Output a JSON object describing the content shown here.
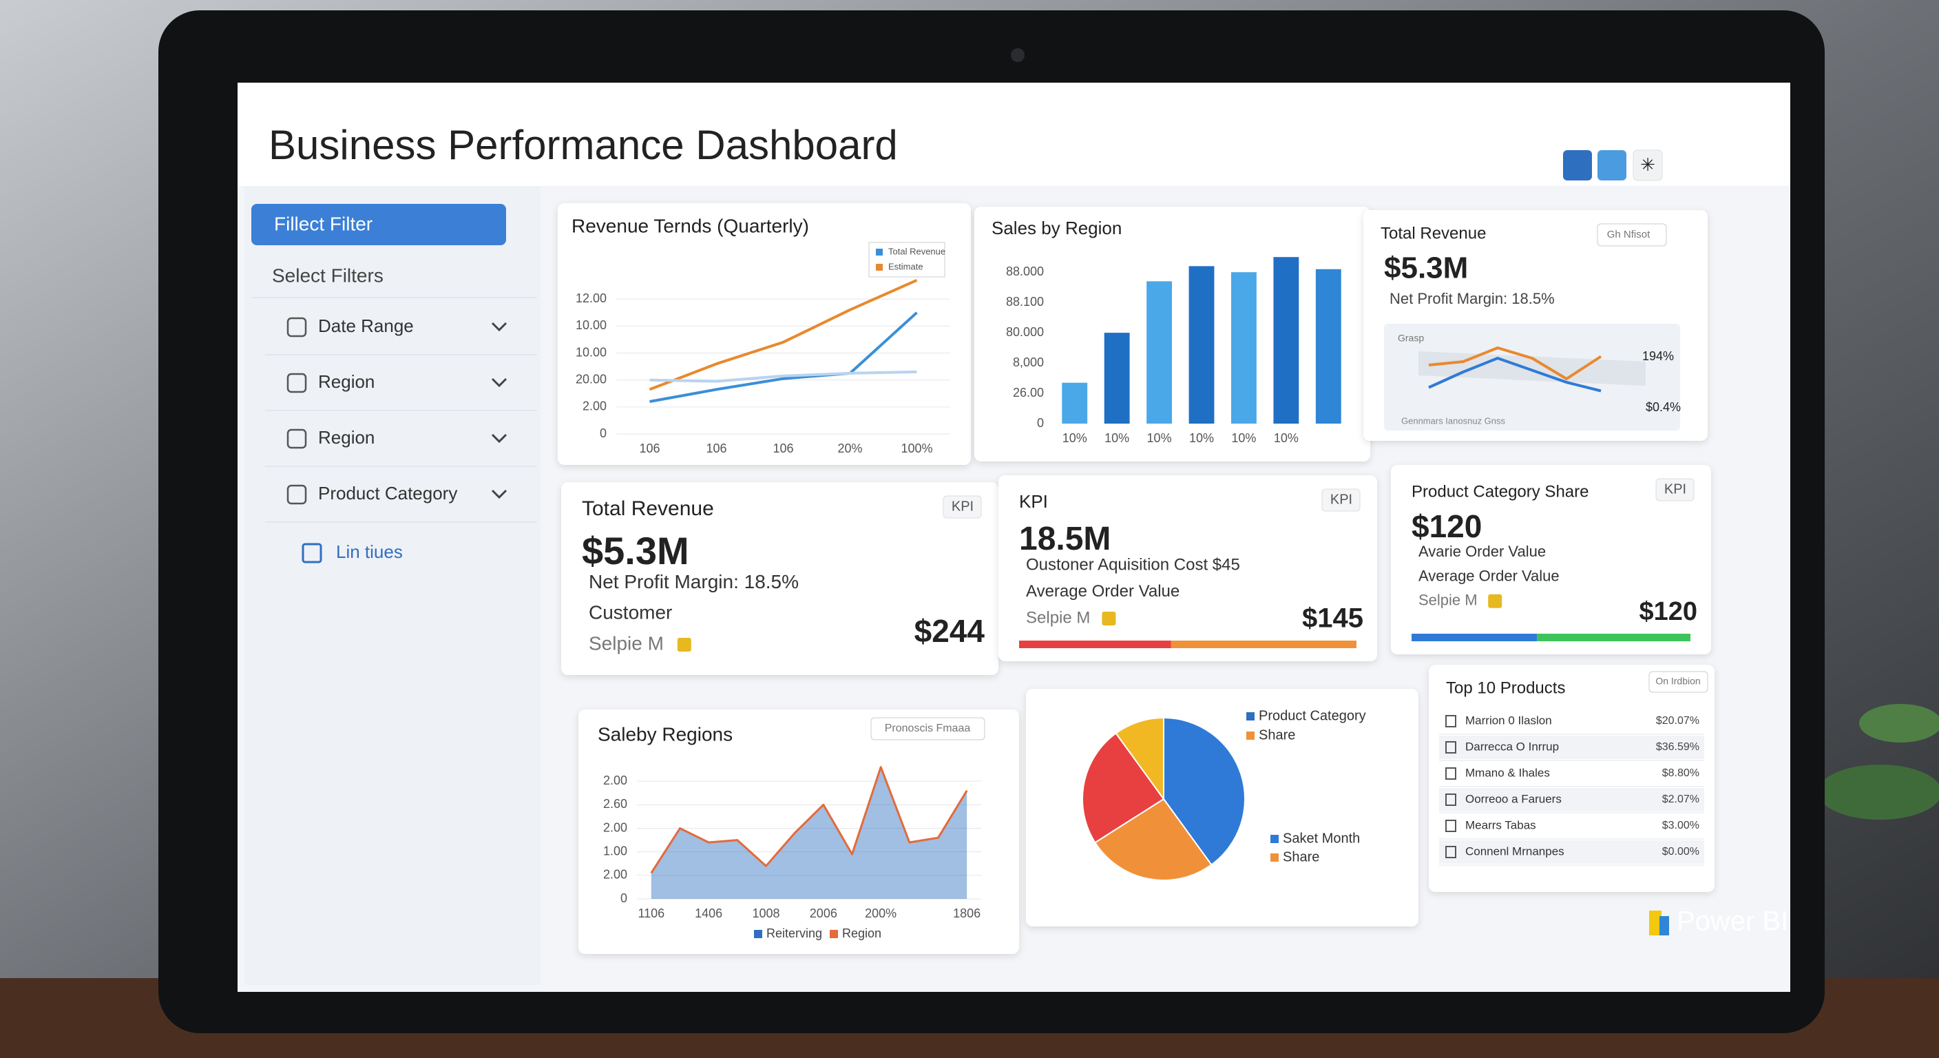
{
  "header": {
    "title": "Business Performance Dashboard",
    "brand": "Power BI"
  },
  "sidebar": {
    "active": "Fillect Filter",
    "heading": "Select Filters",
    "items": [
      "Date Range",
      "Region",
      "Region",
      "Product Category"
    ],
    "link": "Lin tiues"
  },
  "revenue_trends": {
    "title": "Revenue Ternds (Quarterly)",
    "chart": {
      "type": "line",
      "categories": [
        "106",
        "106",
        "106",
        "20%",
        "100%"
      ],
      "series": [
        {
          "name": "Total Revenue",
          "color": "#3a8fd8",
          "values": [
            2.4,
            3.3,
            4.1,
            4.5,
            9.0
          ]
        },
        {
          "name": "Estimate",
          "color": "#e8892e",
          "values": [
            3.3,
            5.2,
            6.8,
            9.2,
            11.4
          ]
        },
        {
          "color": "#b9d3ef",
          "values": [
            4.0,
            3.9,
            4.3,
            4.5,
            4.6
          ]
        }
      ],
      "ylim": [
        0,
        12
      ],
      "yticks": [
        0,
        {
          "value": 2,
          "label": "2.00"
        },
        {
          "value": 4,
          "label": "20.00"
        },
        {
          "value": 6,
          "label": "10.00"
        },
        {
          "value": 8,
          "label": "10.00"
        },
        {
          "value": 10,
          "label": "12.00"
        }
      ],
      "grid": true
    }
  },
  "sales_by_region": {
    "title": "Sales by Region",
    "chart": {
      "type": "bar",
      "categories": [
        "10%",
        "10%",
        "10%",
        "10%",
        "10%",
        "10%",
        null
      ],
      "values": [
        1.35,
        3.0,
        4.7,
        5.2,
        5.0,
        5.5,
        5.1
      ],
      "colors": [
        "#4aa8e8",
        "#1f6fc5",
        "#4aa8e8",
        "#1f6fc5",
        "#4aa8e8",
        "#1f6fc5",
        "#2f86d6"
      ],
      "ylim": [
        0,
        5.8
      ],
      "yticks": [
        0,
        {
          "value": 1,
          "label": "26.00"
        },
        {
          "value": 2,
          "label": "8,000"
        },
        {
          "value": 3,
          "label": "80.000"
        },
        {
          "value": 4,
          "label": "88.100"
        },
        {
          "value": 5,
          "label": "88.000"
        }
      ],
      "grid": false
    }
  },
  "total_revenue_summary": {
    "title": "Total Revenue",
    "button": "Gh Nfisot",
    "value": "$5.3M",
    "subtitle": "Net Profit Margin: 18.5%",
    "chart": {
      "type": "line",
      "title": "Grasp",
      "footer": "Gennmars Ianosnuz Gnss",
      "categories": [
        null,
        null,
        null,
        null,
        null,
        null
      ],
      "series": [
        {
          "color": "#e8892e",
          "values": [
            2.4,
            2.6,
            3.4,
            2.8,
            1.6,
            2.9
          ]
        },
        {
          "color": "#2f7ad6",
          "values": [
            1.1,
            2.0,
            2.8,
            2.1,
            1.4,
            0.9
          ]
        }
      ],
      "ylim": [
        0,
        4
      ],
      "annotations": [
        "194%",
        "$0.4%"
      ]
    }
  },
  "kpi_cards": [
    {
      "title": "Total Revenue",
      "badge": "KPI",
      "value": "$5.3M",
      "lines": [
        "Net Profit Margin: 18.5%",
        "Customer",
        "Selpie M"
      ],
      "amount": "$244"
    },
    {
      "title": "KPI",
      "badge": "KPI",
      "value": "18.5M",
      "lines": [
        "Oustoner Aquisition Cost $45",
        "Average Order Value",
        "Selpie M"
      ],
      "amount": "$145"
    },
    {
      "title": "Product Category Share",
      "badge": "KPI",
      "value": "$120",
      "lines": [
        "Avarie Order Value",
        "Average Order Value",
        "Selpie M"
      ],
      "amount": "$120"
    }
  ],
  "saleby_regions": {
    "title": "Saleby Regions",
    "button": "Pronoscis Fmaaa",
    "chart": {
      "type": "area",
      "categories": [
        "1106",
        null,
        "1406",
        null,
        "1008",
        null,
        "2006",
        null,
        "200%",
        null,
        null,
        "1806"
      ],
      "series": [
        {
          "name": "Reiterving",
          "color": "#2f6fc0",
          "values": [
            1.1,
            3.0,
            2.4,
            2.5,
            1.4,
            2.8,
            4.0,
            1.9,
            5.6,
            2.4,
            2.6,
            4.6
          ]
        },
        {
          "name": "Region",
          "color": "#e36a3a",
          "values": [
            1.1,
            3.0,
            2.4,
            2.5,
            1.4,
            2.8,
            4.0,
            1.9,
            5.6,
            2.4,
            2.6,
            4.6
          ]
        }
      ],
      "ylim": [
        0,
        6
      ],
      "yticks": [
        0,
        {
          "value": 1,
          "label": "2.00"
        },
        {
          "value": 2,
          "label": "1.00"
        },
        {
          "value": 3,
          "label": "2.00"
        },
        {
          "value": 4,
          "label": "2.60"
        },
        {
          "value": 5,
          "label": "2.00"
        }
      ],
      "grid": true
    }
  },
  "category_share": {
    "chart": {
      "type": "pie",
      "values": [
        40,
        26,
        24,
        10
      ],
      "colors": [
        "#2f7ad6",
        "#f0913a",
        "#e84040",
        "#f2b824"
      ],
      "legend": [
        {
          "label": "Product Category",
          "color": "#2f6fc0"
        },
        {
          "label": "Share",
          "color": "#f0913a"
        },
        {
          "label": "Saket Month",
          "color": "#2f7ad6"
        },
        {
          "label": "Share",
          "color": "#f0913a"
        }
      ]
    }
  },
  "top_products": {
    "title": "Top 10 Products",
    "button": "On Irdbion",
    "rows": [
      [
        "Marrion 0 Ilaslon",
        "$20.07%"
      ],
      [
        "Darrecca O Inrrup",
        "$36.59%"
      ],
      [
        "Mmano & Ihales",
        "$8.80%"
      ],
      [
        "Oorreoo a Faruers",
        "$2.07%"
      ],
      [
        "Mearrs Tabas",
        "$3.00%"
      ],
      [
        "Connenl Mrnanpes",
        "$0.00%"
      ]
    ]
  }
}
